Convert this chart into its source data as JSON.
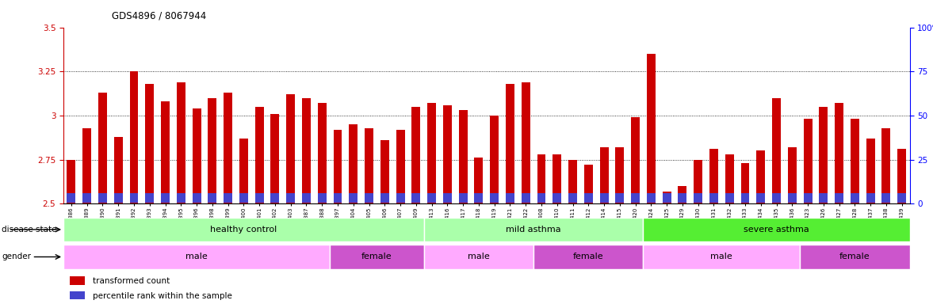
{
  "title": "GDS4896 / 8067944",
  "samples": [
    "GSM665386",
    "GSM665389",
    "GSM665390",
    "GSM665391",
    "GSM665392",
    "GSM665393",
    "GSM665394",
    "GSM665395",
    "GSM665396",
    "GSM665398",
    "GSM665399",
    "GSM665400",
    "GSM665401",
    "GSM665402",
    "GSM665403",
    "GSM665387",
    "GSM665388",
    "GSM665397",
    "GSM665404",
    "GSM665405",
    "GSM665406",
    "GSM665407",
    "GSM665409",
    "GSM665413",
    "GSM665416",
    "GSM665417",
    "GSM665418",
    "GSM665419",
    "GSM665421",
    "GSM665422",
    "GSM665408",
    "GSM665410",
    "GSM665411",
    "GSM665412",
    "GSM665414",
    "GSM665415",
    "GSM665420",
    "GSM665424",
    "GSM665425",
    "GSM665429",
    "GSM665430",
    "GSM665431",
    "GSM665432",
    "GSM665433",
    "GSM665434",
    "GSM665435",
    "GSM665436",
    "GSM665423",
    "GSM665426",
    "GSM665427",
    "GSM665428",
    "GSM665437",
    "GSM665438",
    "GSM665439"
  ],
  "bar_values": [
    2.75,
    2.93,
    3.13,
    2.88,
    3.25,
    3.18,
    3.08,
    3.19,
    3.04,
    3.1,
    3.13,
    2.87,
    3.05,
    3.01,
    3.12,
    3.1,
    3.07,
    2.92,
    2.95,
    2.93,
    2.86,
    2.92,
    3.05,
    3.07,
    3.06,
    3.03,
    2.76,
    3.0,
    3.18,
    3.19,
    2.78,
    2.78,
    2.75,
    2.72,
    2.82,
    2.82,
    2.99,
    3.35,
    2.57,
    2.6,
    2.75,
    2.81,
    2.78,
    2.73,
    2.8,
    3.1,
    2.82,
    2.98,
    3.05,
    3.07,
    2.98,
    2.87,
    2.93,
    2.81
  ],
  "perc_heights": [
    0.055,
    0.055,
    0.055,
    0.055,
    0.055,
    0.055,
    0.055,
    0.055,
    0.055,
    0.055,
    0.055,
    0.055,
    0.055,
    0.055,
    0.055,
    0.055,
    0.055,
    0.055,
    0.055,
    0.055,
    0.055,
    0.055,
    0.055,
    0.055,
    0.055,
    0.055,
    0.055,
    0.055,
    0.055,
    0.055,
    0.055,
    0.055,
    0.055,
    0.055,
    0.055,
    0.055,
    0.055,
    0.055,
    0.055,
    0.055,
    0.055,
    0.055,
    0.055,
    0.055,
    0.055,
    0.055,
    0.055,
    0.055,
    0.055,
    0.055,
    0.055,
    0.055,
    0.055,
    0.055
  ],
  "bar_base": 2.5,
  "ymin": 2.5,
  "ymax": 3.5,
  "yticks": [
    2.5,
    2.75,
    3.0,
    3.25,
    3.5
  ],
  "ytick_labels": [
    "2.5",
    "2.75",
    "3",
    "3.25",
    "3.5"
  ],
  "right_yticks": [
    0,
    25,
    50,
    75,
    100
  ],
  "right_ytick_labels": [
    "0",
    "25",
    "50",
    "75",
    "100%"
  ],
  "bar_color": "#cc0000",
  "percentile_color": "#4444cc",
  "bg_color": "#ffffff",
  "disease_state_groups": [
    {
      "label": "healthy control",
      "start": 0,
      "end": 23,
      "color": "#aaffaa"
    },
    {
      "label": "mild asthma",
      "start": 23,
      "end": 37,
      "color": "#aaffaa"
    },
    {
      "label": "severe asthma",
      "start": 37,
      "end": 54,
      "color": "#55ee33"
    }
  ],
  "gender_groups": [
    {
      "label": "male",
      "start": 0,
      "end": 17,
      "color": "#ffaaff"
    },
    {
      "label": "female",
      "start": 17,
      "end": 23,
      "color": "#cc55cc"
    },
    {
      "label": "male",
      "start": 23,
      "end": 30,
      "color": "#ffaaff"
    },
    {
      "label": "female",
      "start": 30,
      "end": 37,
      "color": "#cc55cc"
    },
    {
      "label": "male",
      "start": 37,
      "end": 47,
      "color": "#ffaaff"
    },
    {
      "label": "female",
      "start": 47,
      "end": 54,
      "color": "#cc55cc"
    }
  ],
  "legend_items": [
    {
      "label": "transformed count",
      "color": "#cc0000"
    },
    {
      "label": "percentile rank within the sample",
      "color": "#4444cc"
    }
  ],
  "grid_lines": [
    2.75,
    3.0,
    3.25
  ],
  "label_disease_state": "disease state",
  "label_gender": "gender"
}
